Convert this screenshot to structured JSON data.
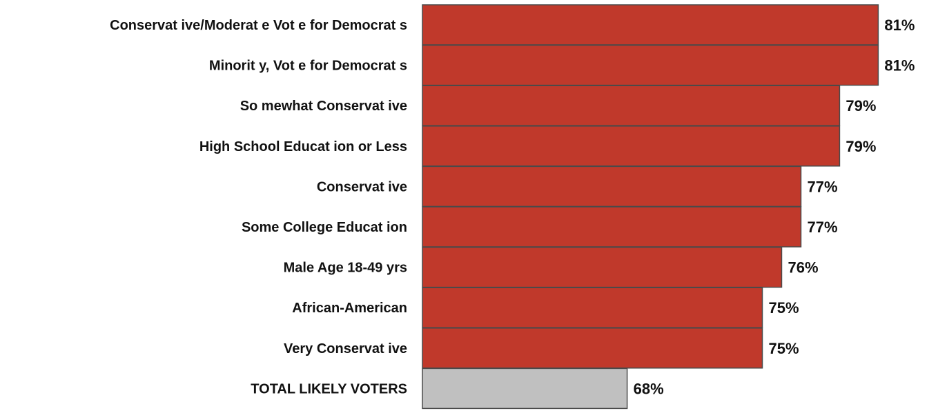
{
  "chart_data": {
    "type": "bar",
    "orientation": "horizontal",
    "categories": [
      "Conservat ive/Moderat e Vot e for Democrat s",
      "Minorit y, Vot e for Democrat s",
      "So mewhat Conservat ive",
      "High School Educat ion or Less",
      "Conservat ive",
      "Some College Educat ion",
      "Male Age 18-49 yrs",
      "African-American",
      "Very Conservat ive",
      "TOTAL LIKELY VOTERS"
    ],
    "values": [
      81,
      81,
      79,
      79,
      77,
      77,
      76,
      75,
      75,
      68
    ],
    "value_labels": [
      "81%",
      "81%",
      "79%",
      "79%",
      "77%",
      "77%",
      "76%",
      "75%",
      "75%",
      "68%"
    ],
    "unit": "%",
    "colors": [
      "#c0392b",
      "#c0392b",
      "#c0392b",
      "#c0392b",
      "#c0392b",
      "#c0392b",
      "#c0392b",
      "#c0392b",
      "#c0392b",
      "#c0c0c0"
    ],
    "border_color": "#4a4a4a",
    "xlim": [
      57.4,
      81.2
    ],
    "grid": false,
    "legend": "none"
  }
}
